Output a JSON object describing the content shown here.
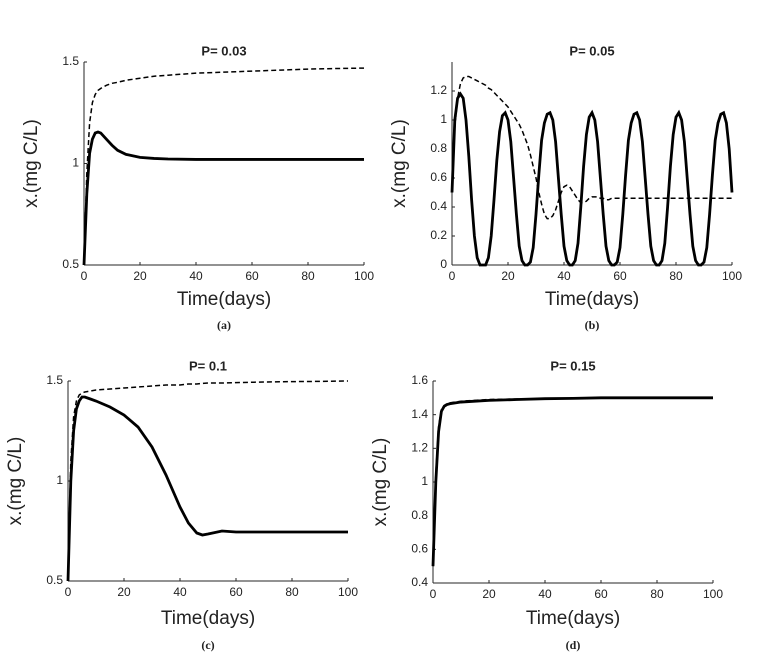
{
  "chart_data": [
    {
      "type": "line",
      "title": "P= 0.03",
      "caption": "(a)",
      "xlabel": "Time(days)",
      "ylabel": "x.(mg C/L)",
      "x": [
        0,
        1,
        2,
        3,
        4,
        5,
        6,
        8,
        10,
        12,
        15,
        20,
        25,
        30,
        40,
        50,
        60,
        70,
        80,
        90,
        100
      ],
      "series": [
        {
          "color": "#000000",
          "style": "solid",
          "values": [
            0.5,
            0.85,
            1.05,
            1.12,
            1.15,
            1.155,
            1.15,
            1.12,
            1.09,
            1.065,
            1.045,
            1.03,
            1.025,
            1.022,
            1.02,
            1.02,
            1.02,
            1.02,
            1.02,
            1.02,
            1.02
          ]
        },
        {
          "color": "#000000",
          "style": "dashed",
          "values": [
            0.5,
            0.95,
            1.2,
            1.3,
            1.34,
            1.36,
            1.37,
            1.385,
            1.395,
            1.4,
            1.41,
            1.42,
            1.43,
            1.435,
            1.445,
            1.45,
            1.455,
            1.46,
            1.465,
            1.468,
            1.47
          ]
        }
      ],
      "xlim": [
        0,
        100
      ],
      "ylim": [
        0.5,
        1.5
      ],
      "xticks": [
        0,
        20,
        40,
        60,
        80,
        100
      ],
      "yticks": [
        0.5,
        1,
        1.5
      ]
    },
    {
      "type": "line",
      "title": "P= 0.05",
      "caption": "(b)",
      "xlabel": "Time(days)",
      "ylabel": "x.(mg C/L)",
      "x": [
        0,
        1,
        2,
        3,
        4,
        5,
        6,
        7,
        8,
        9,
        10,
        11,
        12,
        13,
        14,
        15,
        16,
        17,
        18,
        19,
        20,
        21,
        22,
        23,
        24,
        25,
        26,
        27,
        28,
        29,
        30,
        31,
        32,
        33,
        34,
        35,
        36,
        37,
        38,
        39,
        40,
        41,
        42,
        43,
        44,
        45,
        46,
        47,
        48,
        49,
        50,
        51,
        52,
        53,
        54,
        55,
        56,
        57,
        58,
        59,
        60,
        61,
        62,
        63,
        64,
        65,
        66,
        67,
        68,
        69,
        70,
        71,
        72,
        73,
        74,
        75,
        76,
        77,
        78,
        79,
        80,
        81,
        82,
        83,
        84,
        85,
        86,
        87,
        88,
        89,
        90,
        91,
        92,
        93,
        94,
        95,
        96,
        97,
        98,
        99,
        100
      ],
      "series": [
        {
          "color": "#000000",
          "style": "solid",
          "values": [
            0.5,
            1.0,
            1.15,
            1.18,
            1.15,
            1.0,
            0.75,
            0.45,
            0.2,
            0.05,
            0,
            0,
            0,
            0.05,
            0.2,
            0.45,
            0.72,
            0.92,
            1.03,
            1.05,
            1.0,
            0.85,
            0.6,
            0.35,
            0.13,
            0.03,
            0,
            0,
            0.02,
            0.12,
            0.35,
            0.62,
            0.86,
            0.98,
            1.04,
            1.05,
            1.0,
            0.85,
            0.6,
            0.35,
            0.13,
            0.03,
            0,
            0,
            0.03,
            0.15,
            0.4,
            0.68,
            0.9,
            1.02,
            1.05,
            1.0,
            0.85,
            0.6,
            0.35,
            0.13,
            0.03,
            0,
            0,
            0.02,
            0.12,
            0.35,
            0.62,
            0.86,
            0.98,
            1.04,
            1.05,
            1.0,
            0.85,
            0.6,
            0.35,
            0.13,
            0.03,
            0,
            0,
            0.03,
            0.15,
            0.4,
            0.68,
            0.9,
            1.02,
            1.05,
            1.0,
            0.85,
            0.6,
            0.35,
            0.13,
            0.03,
            0,
            0,
            0.02,
            0.12,
            0.35,
            0.62,
            0.86,
            0.98,
            1.04,
            1.05,
            0.98,
            0.8,
            0.5
          ]
        },
        {
          "color": "#000000",
          "style": "dashed",
          "values": [
            0.5,
            0.95,
            1.15,
            1.25,
            1.29,
            1.3,
            1.3,
            1.29,
            1.28,
            1.27,
            1.26,
            1.25,
            1.24,
            1.22,
            1.21,
            1.19,
            1.17,
            1.15,
            1.13,
            1.11,
            1.09,
            1.06,
            1.03,
            1.0,
            0.97,
            0.93,
            0.88,
            0.83,
            0.76,
            0.68,
            0.6,
            0.5,
            0.42,
            0.35,
            0.32,
            0.32,
            0.34,
            0.38,
            0.44,
            0.5,
            0.54,
            0.55,
            0.54,
            0.51,
            0.48,
            0.45,
            0.43,
            0.43,
            0.44,
            0.46,
            0.47,
            0.47,
            0.47,
            0.46,
            0.46,
            0.45,
            0.45,
            0.46,
            0.46,
            0.46,
            0.46,
            0.46,
            0.46,
            0.46,
            0.46,
            0.46,
            0.46,
            0.46,
            0.46,
            0.46,
            0.46,
            0.46,
            0.46,
            0.46,
            0.46,
            0.46,
            0.46,
            0.46,
            0.46,
            0.46,
            0.46,
            0.46,
            0.46,
            0.46,
            0.46,
            0.46,
            0.46,
            0.46,
            0.46,
            0.46,
            0.46,
            0.46,
            0.46,
            0.46,
            0.46,
            0.46,
            0.46,
            0.46,
            0.46,
            0.46,
            0.46
          ]
        }
      ],
      "xlim": [
        0,
        100
      ],
      "ylim": [
        0,
        1.4
      ],
      "xticks": [
        0,
        20,
        40,
        60,
        80,
        100
      ],
      "yticks": [
        0,
        0.2,
        0.4,
        0.6,
        0.8,
        1,
        1.2
      ]
    },
    {
      "type": "line",
      "title": "P= 0.1",
      "caption": "(c)",
      "xlabel": "Time(days)",
      "ylabel": "x.(mg C/L)",
      "x": [
        0,
        1,
        2,
        3,
        4,
        5,
        6,
        8,
        10,
        15,
        20,
        25,
        30,
        35,
        40,
        43,
        46,
        48,
        50,
        55,
        60,
        70,
        80,
        90,
        100
      ],
      "series": [
        {
          "color": "#000000",
          "style": "solid",
          "values": [
            0.5,
            1.0,
            1.25,
            1.36,
            1.4,
            1.42,
            1.42,
            1.41,
            1.4,
            1.37,
            1.33,
            1.27,
            1.17,
            1.03,
            0.87,
            0.79,
            0.74,
            0.73,
            0.735,
            0.75,
            0.745,
            0.745,
            0.745,
            0.745,
            0.745
          ]
        },
        {
          "color": "#000000",
          "style": "dashed",
          "values": [
            0.5,
            1.1,
            1.32,
            1.4,
            1.43,
            1.44,
            1.445,
            1.45,
            1.455,
            1.46,
            1.465,
            1.47,
            1.475,
            1.48,
            1.48,
            1.485,
            1.485,
            1.488,
            1.49,
            1.49,
            1.492,
            1.495,
            1.497,
            1.498,
            1.5
          ]
        }
      ],
      "xlim": [
        0,
        100
      ],
      "ylim": [
        0.5,
        1.5
      ],
      "xticks": [
        0,
        20,
        40,
        60,
        80,
        100
      ],
      "yticks": [
        0.5,
        1,
        1.5
      ]
    },
    {
      "type": "line",
      "title": "P= 0.15",
      "caption": "(d)",
      "xlabel": "Time(days)",
      "ylabel": "x.(mg C/L)",
      "x": [
        0,
        1,
        2,
        3,
        4,
        5,
        6,
        8,
        10,
        15,
        20,
        30,
        40,
        50,
        60,
        70,
        80,
        90,
        100
      ],
      "series": [
        {
          "color": "#000000",
          "style": "solid",
          "values": [
            0.5,
            1.0,
            1.3,
            1.42,
            1.45,
            1.46,
            1.465,
            1.47,
            1.475,
            1.48,
            1.485,
            1.49,
            1.495,
            1.497,
            1.5,
            1.5,
            1.5,
            1.5,
            1.5
          ]
        },
        {
          "color": "#000000",
          "style": "dashed",
          "values": [
            0.5,
            1.05,
            1.33,
            1.43,
            1.455,
            1.465,
            1.47,
            1.475,
            1.48,
            1.485,
            1.49,
            1.493,
            1.496,
            1.498,
            1.5,
            1.5,
            1.5,
            1.5,
            1.5
          ]
        }
      ],
      "xlim": [
        0,
        100
      ],
      "ylim": [
        0.4,
        1.6
      ],
      "xticks": [
        0,
        20,
        40,
        60,
        80,
        100
      ],
      "yticks": [
        0.4,
        0.6,
        0.8,
        1,
        1.2,
        1.4,
        1.6
      ]
    }
  ]
}
